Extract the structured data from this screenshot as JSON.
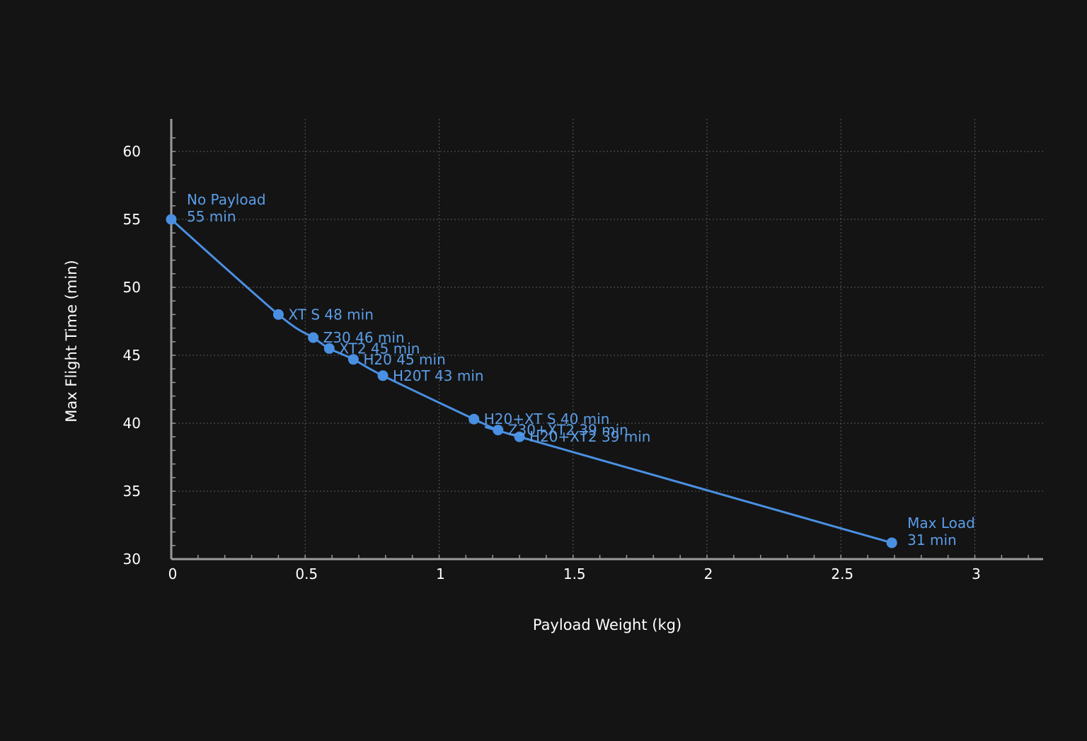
{
  "chart_data": {
    "type": "line",
    "title": "",
    "xlabel": "Payload Weight (kg)",
    "ylabel": "Max Flight Time (min)",
    "xlim": [
      0,
      3.25
    ],
    "ylim": [
      30,
      62
    ],
    "xticks": [
      0,
      0.5,
      1,
      1.5,
      2,
      2.5,
      3
    ],
    "xtick_labels": [
      "0",
      "0.5",
      "1",
      "1.5",
      "2",
      "2.5",
      "3"
    ],
    "yticks": [
      30,
      35,
      40,
      45,
      50,
      55,
      60
    ],
    "ytick_labels": [
      "30",
      "35",
      "40",
      "45",
      "50",
      "55",
      "60"
    ],
    "grid": true,
    "colors": {
      "background": "#141414",
      "series": "#4a90e2",
      "label": "#5b9de8",
      "axis": "#9a9a9a",
      "grid": "#5a5a5a",
      "text": "#ffffff"
    },
    "series": [
      {
        "points": [
          {
            "x": 0,
            "y": 55,
            "label": [
              "No Payload",
              "55 min"
            ]
          },
          {
            "x": 0.4,
            "y": 48,
            "label": [
              "XT S 48 min"
            ]
          },
          {
            "x": 0.53,
            "y": 46.3,
            "label": [
              "Z30 46 min"
            ]
          },
          {
            "x": 0.59,
            "y": 45.5,
            "label": [
              "XT2 45 min"
            ]
          },
          {
            "x": 0.68,
            "y": 44.7,
            "label": [
              "H20 45 min"
            ]
          },
          {
            "x": 0.79,
            "y": 43.5,
            "label": [
              "H20T 43 min"
            ]
          },
          {
            "x": 1.13,
            "y": 40.3,
            "label": [
              "H20+XT S 40 min"
            ]
          },
          {
            "x": 1.22,
            "y": 39.5,
            "label": [
              "Z30+XT2 39 min"
            ]
          },
          {
            "x": 1.3,
            "y": 39.0,
            "label": [
              "H20+XT2 39 min"
            ]
          },
          {
            "x": 2.69,
            "y": 31.2,
            "label": [
              "Max Load",
              "31 min"
            ]
          }
        ]
      }
    ]
  }
}
